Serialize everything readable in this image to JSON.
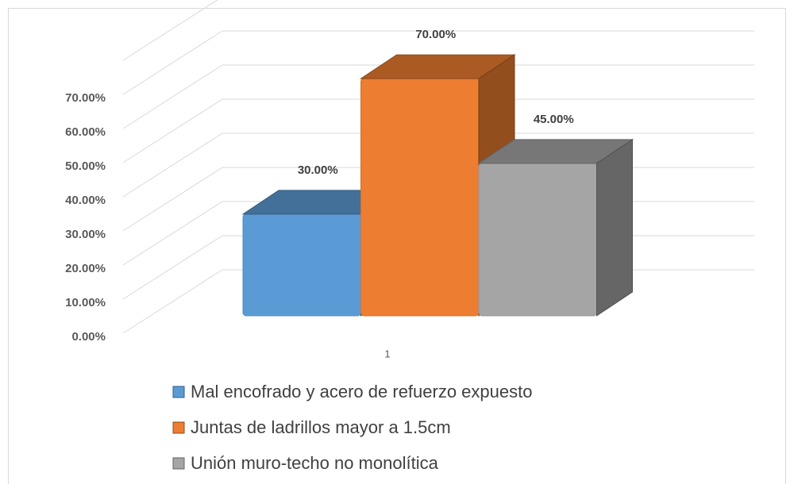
{
  "chart_data": {
    "type": "bar3d",
    "categories": [
      "1"
    ],
    "series": [
      {
        "name": "Mal encofrado y acero de refuerzo expuesto",
        "color": "#5b9bd5",
        "values": [
          30
        ],
        "value_labels": [
          "30.00%"
        ]
      },
      {
        "name": "Juntas de ladrillos mayor a 1.5cm",
        "color": "#ed7d31",
        "values": [
          70
        ],
        "value_labels": [
          "70.00%"
        ]
      },
      {
        "name": "Unión muro-techo no monolítica",
        "color": "#a5a5a5",
        "values": [
          45
        ],
        "value_labels": [
          "45.00%"
        ]
      }
    ],
    "ylim": [
      0,
      80
    ],
    "yticks": [
      {
        "value": 0,
        "label": "0.00%"
      },
      {
        "value": 10,
        "label": "10.00%"
      },
      {
        "value": 20,
        "label": "20.00%"
      },
      {
        "value": 30,
        "label": "30.00%"
      },
      {
        "value": 40,
        "label": "40.00%"
      },
      {
        "value": 50,
        "label": "50.00%"
      },
      {
        "value": 60,
        "label": "60.00%"
      },
      {
        "value": 70,
        "label": "70.00%"
      }
    ],
    "grid": true,
    "legend": "bottom"
  }
}
